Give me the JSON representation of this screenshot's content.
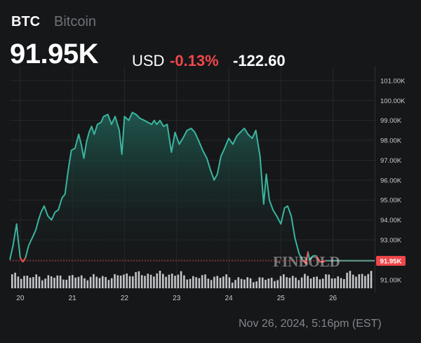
{
  "header": {
    "symbol": "BTC",
    "name": "Bitcoin",
    "price": "91.95K",
    "currency": "USD",
    "change_pct": "-0.13%",
    "change_abs": "-122.60"
  },
  "timestamp": "Nov 26, 2024, 5:16pm (EST)",
  "watermark": "FINBOLD",
  "colors": {
    "background": "#161719",
    "line": "#3ab59f",
    "area_top": "#1f5a50",
    "negative": "#f0474a",
    "volume_bar": "#d3d5d8",
    "grid": "#26282b",
    "axis_text": "#c9ccd0"
  },
  "chart_data": {
    "type": "line",
    "title": "",
    "xlabel": "",
    "ylabel": "",
    "x_ticks": [
      "20",
      "21",
      "22",
      "23",
      "24",
      "25",
      "26"
    ],
    "y_ticks": [
      "101.00K",
      "100.00K",
      "99.00K",
      "98.00K",
      "97.00K",
      "96.00K",
      "95.00K",
      "94.00K",
      "93.00K",
      "92.00K",
      "91.00K"
    ],
    "y_tick_values": [
      101,
      100,
      99,
      98,
      97,
      96,
      95,
      94,
      93,
      92,
      91
    ],
    "ylim": [
      90.5,
      101.7
    ],
    "xlim": [
      19.8,
      26.8
    ],
    "last_price_label": "91.95K",
    "last_price": 91.95,
    "grid": true,
    "series": [
      {
        "values_in_thousands_usd": true,
        "x": [
          19.8,
          19.86,
          19.93,
          19.96,
          20.0,
          20.05,
          20.1,
          20.16,
          20.23,
          20.3,
          20.35,
          20.4,
          20.46,
          20.53,
          20.6,
          20.67,
          20.73,
          20.8,
          20.86,
          20.92,
          20.98,
          21.05,
          21.12,
          21.17,
          21.22,
          21.27,
          21.32,
          21.37,
          21.42,
          21.48,
          21.55,
          21.6,
          21.68,
          21.75,
          21.82,
          21.9,
          21.95,
          22.0,
          22.08,
          22.15,
          22.22,
          22.3,
          22.38,
          22.45,
          22.52,
          22.57,
          22.62,
          22.68,
          22.75,
          22.82,
          22.9,
          22.97,
          23.05,
          23.12,
          23.2,
          23.28,
          23.35,
          23.42,
          23.5,
          23.58,
          23.65,
          23.72,
          23.78,
          23.85,
          23.92,
          24.0,
          24.08,
          24.15,
          24.22,
          24.3,
          24.37,
          24.45,
          24.52,
          24.6,
          24.67,
          24.72,
          24.78,
          24.85,
          24.92,
          25.0,
          25.07,
          25.13,
          25.2,
          25.27,
          25.35,
          25.42,
          25.48,
          25.52,
          25.55,
          25.58,
          25.62,
          25.68,
          25.75,
          25.8,
          25.86,
          25.92,
          25.98,
          26.05,
          26.12,
          26.18,
          26.25,
          26.32,
          26.38,
          26.42,
          26.46,
          26.5,
          26.56,
          26.62,
          26.68,
          26.72,
          26.76,
          26.8
        ],
        "values": [
          92.0,
          92.7,
          93.8,
          93.0,
          92.1,
          91.9,
          92.1,
          92.7,
          93.1,
          93.5,
          94.0,
          94.4,
          94.7,
          94.2,
          94.0,
          94.4,
          94.5,
          95.1,
          95.3,
          96.5,
          97.5,
          97.6,
          98.3,
          97.8,
          97.1,
          97.9,
          98.4,
          98.7,
          98.3,
          98.8,
          98.9,
          99.2,
          99.3,
          98.8,
          99.2,
          98.5,
          97.3,
          99.2,
          99.0,
          99.4,
          99.3,
          99.1,
          99.0,
          98.9,
          98.8,
          99.0,
          98.8,
          99.0,
          98.7,
          98.8,
          97.4,
          98.4,
          97.8,
          98.1,
          98.5,
          98.6,
          98.4,
          98.0,
          97.5,
          97.1,
          96.5,
          96.0,
          96.3,
          97.2,
          97.6,
          98.1,
          97.8,
          98.2,
          98.4,
          98.6,
          98.3,
          98.1,
          98.5,
          97.2,
          94.8,
          96.3,
          95.0,
          94.5,
          94.2,
          93.8,
          94.6,
          94.7,
          94.2,
          93.1,
          92.3,
          92.0,
          91.8,
          92.4,
          92.0,
          92.1,
          92.2,
          92.2,
          91.9,
          91.9,
          91.95,
          91.95,
          91.95,
          91.95,
          91.95,
          91.95,
          91.95,
          91.95,
          91.95,
          91.95,
          91.95,
          91.95,
          91.95,
          91.95,
          91.95,
          91.95,
          91.95,
          91.95
        ],
        "volume_relative": "gray bars along the bottom of the plot, roughly uniform height with a rise around 22.0–23.0 and near 26.4"
      }
    ]
  }
}
